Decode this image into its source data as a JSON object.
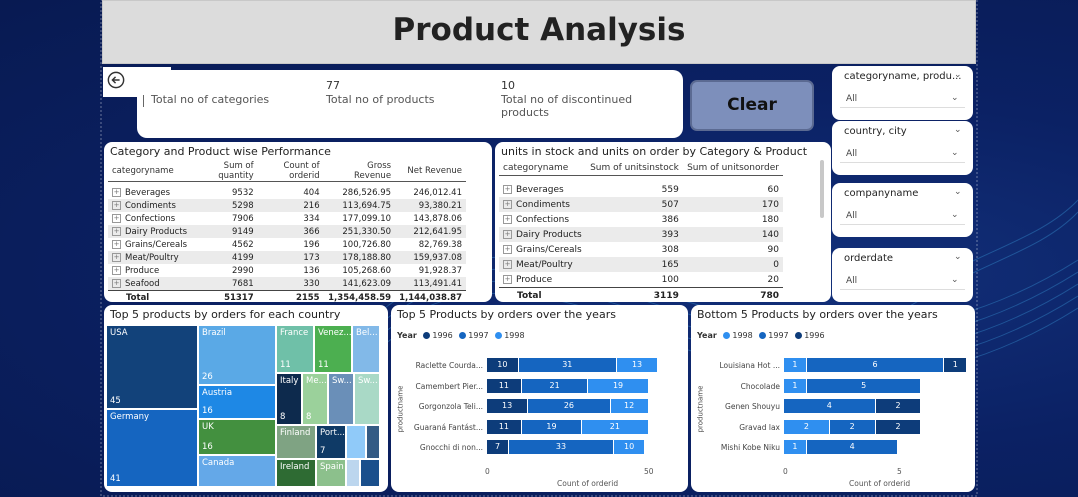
{
  "title": "Product Analysis",
  "kpis": [
    {
      "value": "",
      "label": "Total no of categories"
    },
    {
      "value": "77",
      "label": "Total no of products"
    },
    {
      "value": "10",
      "label": "Total no of discontinued products"
    }
  ],
  "clear_label": "Clear",
  "slicers": [
    {
      "title": "categoryname, produ...",
      "value": "All"
    },
    {
      "title": "country, city",
      "value": "All"
    },
    {
      "title": "companyname",
      "value": "All"
    },
    {
      "title": "orderdate",
      "value": "All"
    }
  ],
  "perf": {
    "title": "Category and Product wise Performance",
    "headers": [
      "categoryname",
      "Sum of quantity",
      "Count of orderid",
      "Gross Revenue",
      "Net Revenue"
    ],
    "rows": [
      [
        "Beverages",
        "9532",
        "404",
        "286,526.95",
        "246,012.41"
      ],
      [
        "Condiments",
        "5298",
        "216",
        "113,694.75",
        "93,380.21"
      ],
      [
        "Confections",
        "7906",
        "334",
        "177,099.10",
        "143,878.06"
      ],
      [
        "Dairy Products",
        "9149",
        "366",
        "251,330.50",
        "212,641.95"
      ],
      [
        "Grains/Cereals",
        "4562",
        "196",
        "100,726.80",
        "82,769.38"
      ],
      [
        "Meat/Poultry",
        "4199",
        "173",
        "178,188.80",
        "159,937.08"
      ],
      [
        "Produce",
        "2990",
        "136",
        "105,268.60",
        "91,928.37"
      ],
      [
        "Seafood",
        "7681",
        "330",
        "141,623.09",
        "113,491.41"
      ]
    ],
    "total": [
      "Total",
      "51317",
      "2155",
      "1,354,458.59",
      "1,144,038.87"
    ]
  },
  "stock": {
    "title": "units in stock and units on order by Category & Product",
    "headers": [
      "categoryname",
      "Sum of unitsinstock",
      "Sum of unitsonorder"
    ],
    "rows": [
      [
        "Beverages",
        "559",
        "60"
      ],
      [
        "Condiments",
        "507",
        "170"
      ],
      [
        "Confections",
        "386",
        "180"
      ],
      [
        "Dairy Products",
        "393",
        "140"
      ],
      [
        "Grains/Cereals",
        "308",
        "90"
      ],
      [
        "Meat/Poultry",
        "165",
        "0"
      ],
      [
        "Produce",
        "100",
        "20"
      ]
    ],
    "total": [
      "Total",
      "3119",
      "780"
    ]
  },
  "treemap": {
    "title": "Top 5 products by orders for each country",
    "tiles": [
      {
        "name": "USA",
        "value": "45",
        "color": "#12427a"
      },
      {
        "name": "Germany",
        "value": "41",
        "color": "#1565c0"
      },
      {
        "name": "Brazil",
        "value": "26",
        "color": "#5aa9e6"
      },
      {
        "name": "Austria",
        "value": "16",
        "color": "#1e88e5"
      },
      {
        "name": "UK",
        "value": "16",
        "color": "#43903f"
      },
      {
        "name": "Canada",
        "value": "",
        "color": "#64a8e8"
      },
      {
        "name": "France",
        "value": "11",
        "color": "#6fc0a8"
      },
      {
        "name": "Venez...",
        "value": "11",
        "color": "#4caf50"
      },
      {
        "name": "Bel...",
        "value": "",
        "color": "#82b9e8"
      },
      {
        "name": "Italy",
        "value": "8",
        "color": "#0d2a4d"
      },
      {
        "name": "Me...",
        "value": "8",
        "color": "#9bd19b"
      },
      {
        "name": "Sw...",
        "value": "",
        "color": "#6a8fb8"
      },
      {
        "name": "Sw...",
        "value": "",
        "color": "#a9d9c6"
      },
      {
        "name": "Finland",
        "value": "",
        "color": "#7fa383"
      },
      {
        "name": "Port...",
        "value": "7",
        "color": "#0f3a66"
      },
      {
        "name": "Ireland",
        "value": "",
        "color": "#2e6b33"
      },
      {
        "name": "Spain",
        "value": "",
        "color": "#8cc08c"
      },
      {
        "name": "",
        "value": "",
        "color": "#90caf9"
      },
      {
        "name": "",
        "value": "",
        "color": "#345b85"
      },
      {
        "name": "",
        "value": "",
        "color": "#bcd6ee"
      },
      {
        "name": "",
        "value": "",
        "color": "#1a4f8c"
      }
    ]
  },
  "top5": {
    "title": "Top 5 Products by orders over the years",
    "legend_title": "Year",
    "legend": [
      {
        "name": "1996",
        "color": "#0d3c7a"
      },
      {
        "name": "1997",
        "color": "#1565c0"
      },
      {
        "name": "1998",
        "color": "#2f8ff0"
      }
    ],
    "yaxis_label": "productname",
    "xaxis_label": "Count of orderid",
    "ticks": [
      "0",
      "50"
    ]
  },
  "bottom5": {
    "title": "Bottom 5 Products by orders over the years",
    "legend_title": "Year",
    "legend": [
      {
        "name": "1998",
        "color": "#2f8ff0"
      },
      {
        "name": "1997",
        "color": "#1565c0"
      },
      {
        "name": "1996",
        "color": "#0d3c7a"
      }
    ],
    "yaxis_label": "productname",
    "xaxis_label": "Count of orderid",
    "ticks": [
      "0",
      "5"
    ]
  },
  "chart_data": [
    {
      "type": "bar",
      "title": "Top 5 Products by orders over the years",
      "categories": [
        "Raclette Courda...",
        "Camembert Pier...",
        "Gorgonzola Teli...",
        "Guaraná Fantást...",
        "Gnocchi di non..."
      ],
      "series": [
        {
          "name": "1996",
          "values": [
            10,
            11,
            13,
            11,
            7
          ]
        },
        {
          "name": "1997",
          "values": [
            31,
            21,
            26,
            19,
            33
          ]
        },
        {
          "name": "1998",
          "values": [
            13,
            19,
            12,
            21,
            10
          ]
        }
      ],
      "xlabel": "Count of orderid",
      "ylabel": "productname",
      "xlim": [
        0,
        55
      ]
    },
    {
      "type": "bar",
      "title": "Bottom 5 Products by orders over the years",
      "categories": [
        "Louisiana Hot ...",
        "Chocolade",
        "Genen Shouyu",
        "Gravad lax",
        "Mishi Kobe Niku"
      ],
      "series": [
        {
          "name": "1998",
          "values": [
            1,
            1,
            0,
            2,
            1
          ]
        },
        {
          "name": "1997",
          "values": [
            6,
            5,
            4,
            2,
            4
          ]
        },
        {
          "name": "1996",
          "values": [
            1,
            0,
            2,
            2,
            0
          ]
        }
      ],
      "xlabel": "Count of orderid",
      "ylabel": "productname",
      "xlim": [
        0,
        8
      ]
    }
  ]
}
